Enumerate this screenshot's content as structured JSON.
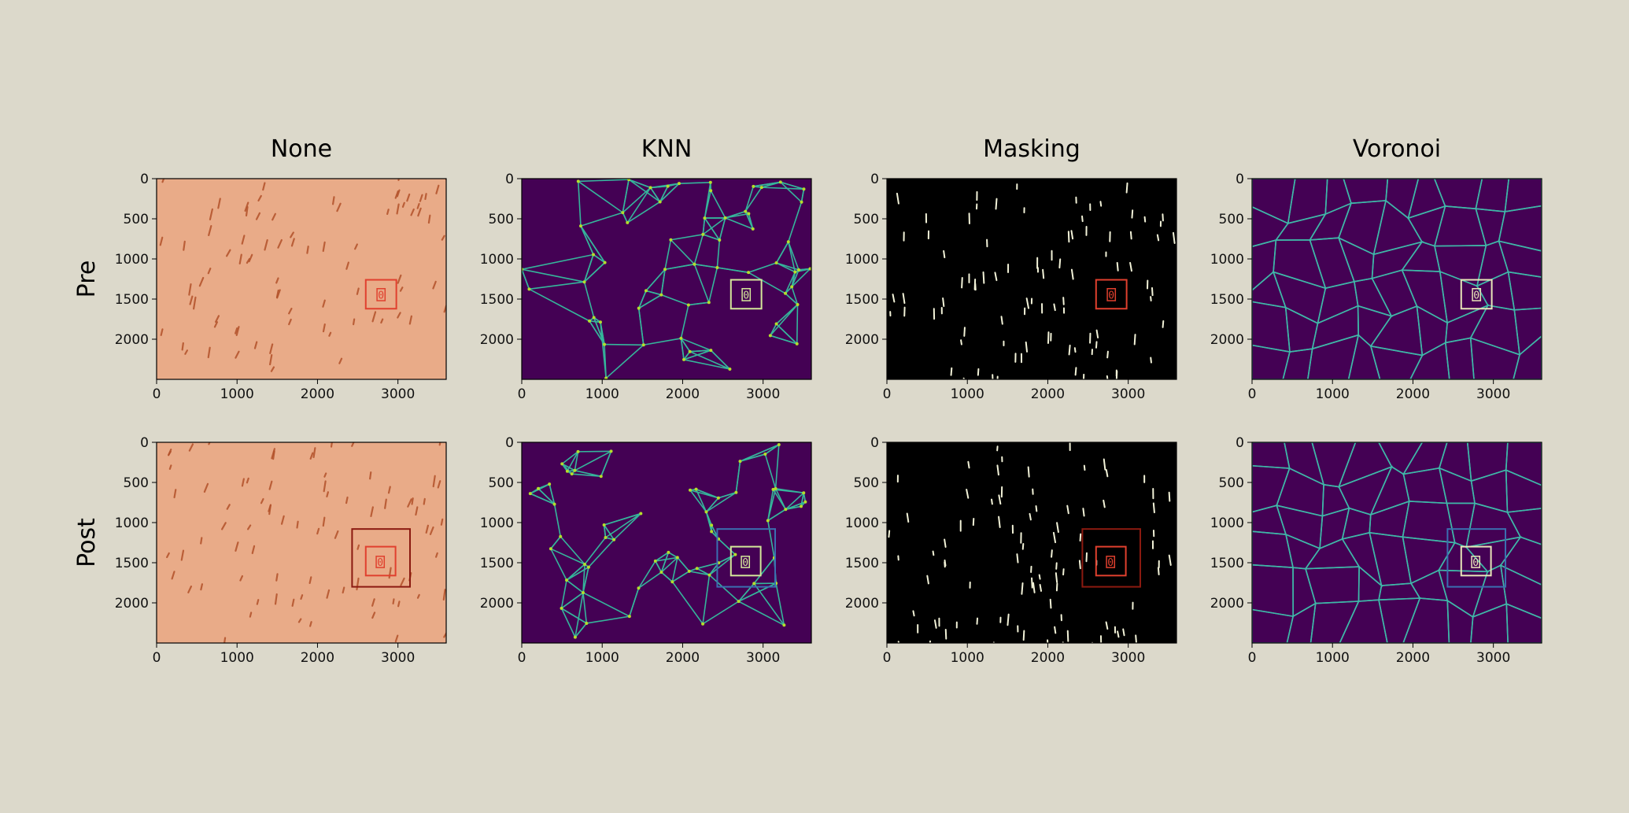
{
  "chart_data": {
    "type": "image-grid",
    "columns": [
      "None",
      "KNN",
      "Masking",
      "Voronoi"
    ],
    "rows": [
      "Pre",
      "Post"
    ],
    "xticks": [
      "0",
      "1000",
      "2000",
      "3000"
    ],
    "yticks": [
      "0",
      "500",
      "1000",
      "1500",
      "2000"
    ],
    "xlim": [
      0,
      3600
    ],
    "ylim": [
      2500,
      0
    ],
    "panel_style": {
      "None": {
        "background": "#e9ab88",
        "marks": "#b2512a"
      },
      "KNN": {
        "background": "#440154",
        "edges": "#35b59b",
        "nodes": "#b5de2b"
      },
      "Masking": {
        "background": "#000000",
        "marks": "#f2f2d8"
      },
      "Voronoi": {
        "background": "#440154",
        "edges": "#3fb8a8"
      }
    },
    "boxes": {
      "Pre": {
        "None": [
          {
            "x0": 2600,
            "y0": 1260,
            "x1": 2980,
            "y1": 1620,
            "color": "#e0402e"
          },
          {
            "x0": 2740,
            "y0": 1370,
            "x1": 2840,
            "y1": 1520,
            "color": "#e0402e"
          }
        ],
        "KNN": [
          {
            "x0": 2600,
            "y0": 1260,
            "x1": 2980,
            "y1": 1620,
            "color": "#d4e89a"
          },
          {
            "x0": 2740,
            "y0": 1370,
            "x1": 2840,
            "y1": 1520,
            "color": "#d4e89a"
          }
        ],
        "Masking": [
          {
            "x0": 2600,
            "y0": 1260,
            "x1": 2980,
            "y1": 1620,
            "color": "#e0402e"
          },
          {
            "x0": 2740,
            "y0": 1370,
            "x1": 2840,
            "y1": 1520,
            "color": "#e0402e"
          }
        ],
        "Voronoi": [
          {
            "x0": 2600,
            "y0": 1260,
            "x1": 2980,
            "y1": 1620,
            "color": "#e8e6b8"
          },
          {
            "x0": 2740,
            "y0": 1370,
            "x1": 2840,
            "y1": 1520,
            "color": "#e8e6b8"
          }
        ]
      },
      "Post": {
        "None": [
          {
            "x0": 2430,
            "y0": 1080,
            "x1": 3150,
            "y1": 1800,
            "color": "#8b1a10"
          },
          {
            "x0": 2600,
            "y0": 1300,
            "x1": 2970,
            "y1": 1660,
            "color": "#e0402e"
          },
          {
            "x0": 2730,
            "y0": 1420,
            "x1": 2830,
            "y1": 1560,
            "color": "#e0402e"
          }
        ],
        "KNN": [
          {
            "x0": 2430,
            "y0": 1080,
            "x1": 3150,
            "y1": 1800,
            "color": "#3b6fb0"
          },
          {
            "x0": 2600,
            "y0": 1300,
            "x1": 2970,
            "y1": 1660,
            "color": "#d4e89a"
          },
          {
            "x0": 2730,
            "y0": 1420,
            "x1": 2830,
            "y1": 1560,
            "color": "#d4e89a"
          }
        ],
        "Masking": [
          {
            "x0": 2430,
            "y0": 1080,
            "x1": 3150,
            "y1": 1800,
            "color": "#8b1a10"
          },
          {
            "x0": 2600,
            "y0": 1300,
            "x1": 2970,
            "y1": 1660,
            "color": "#e0402e"
          },
          {
            "x0": 2730,
            "y0": 1420,
            "x1": 2830,
            "y1": 1560,
            "color": "#e0402e"
          }
        ],
        "Voronoi": [
          {
            "x0": 2430,
            "y0": 1080,
            "x1": 3150,
            "y1": 1800,
            "color": "#3b6fb0"
          },
          {
            "x0": 2600,
            "y0": 1300,
            "x1": 2970,
            "y1": 1660,
            "color": "#e8e6b8"
          },
          {
            "x0": 2730,
            "y0": 1420,
            "x1": 2830,
            "y1": 1560,
            "color": "#e8e6b8"
          }
        ]
      }
    },
    "box_labels": {
      "None": "0",
      "KNN": "0",
      "Masking": "0",
      "Voronoi": "0"
    }
  }
}
